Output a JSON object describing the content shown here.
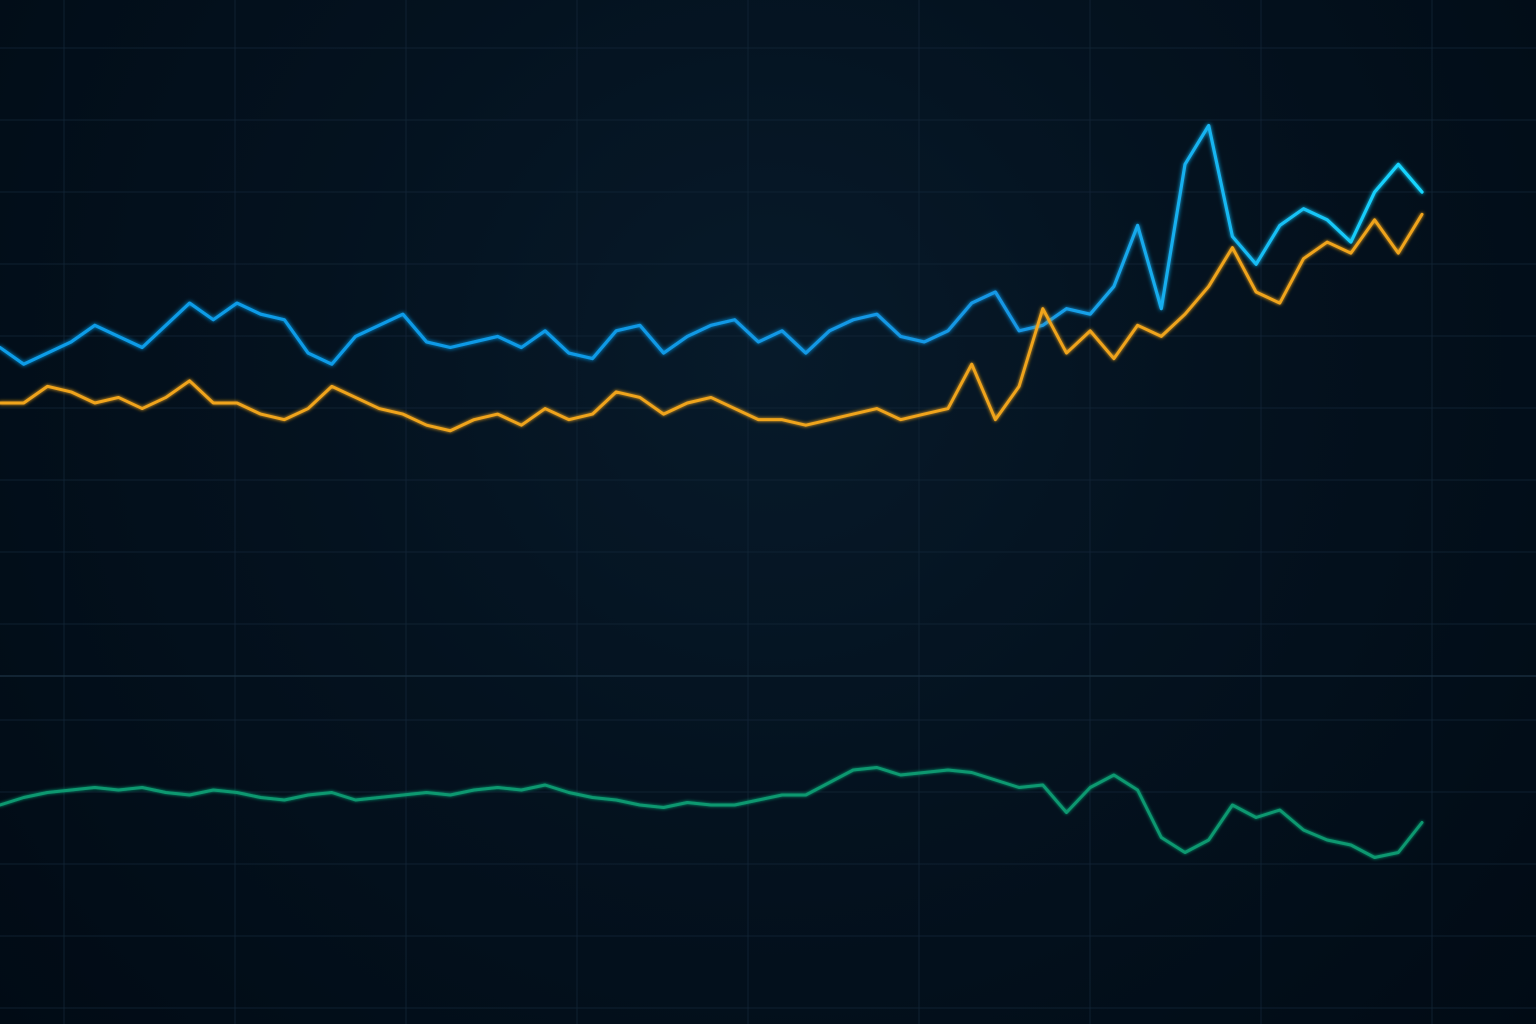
{
  "chart_data": [
    {
      "type": "line",
      "title": "",
      "xlabel": "",
      "ylabel": "",
      "grid": true,
      "legend": "none",
      "x": [
        0,
        1,
        2,
        3,
        4,
        5,
        6,
        7,
        8,
        9,
        10,
        11,
        12,
        13,
        14,
        15,
        16,
        17,
        18,
        19,
        20,
        21,
        22,
        23,
        24,
        25,
        26,
        27,
        28,
        29,
        30,
        31,
        32,
        33,
        34,
        35,
        36,
        37,
        38,
        39,
        40,
        41,
        42,
        43,
        44,
        45,
        46,
        47,
        48,
        49,
        50,
        51,
        52,
        53,
        54,
        55,
        56,
        57,
        58,
        59,
        60
      ],
      "ylim": [
        0,
        100
      ],
      "series": [
        {
          "values": [
            50,
            47,
            49,
            51,
            54,
            52,
            50,
            54,
            58,
            55,
            58,
            56,
            55,
            49,
            47,
            52,
            54,
            56,
            51,
            50,
            51,
            52,
            50,
            53,
            49,
            48,
            53,
            54,
            49,
            52,
            54,
            55,
            51,
            53,
            49,
            53,
            55,
            56,
            52,
            51,
            53,
            58,
            60,
            53,
            54,
            57,
            56,
            61,
            72,
            57,
            83,
            90,
            70,
            65,
            72,
            75,
            73,
            69,
            78,
            83,
            78
          ],
          "color": "#109de9"
        },
        {
          "values": [
            40,
            40,
            43,
            42,
            40,
            41,
            39,
            41,
            44,
            40,
            40,
            38,
            37,
            39,
            43,
            41,
            39,
            38,
            36,
            35,
            37,
            38,
            36,
            39,
            37,
            38,
            42,
            41,
            38,
            40,
            41,
            39,
            37,
            37,
            36,
            37,
            38,
            39,
            37,
            38,
            39,
            47,
            37,
            43,
            57,
            49,
            53,
            48,
            54,
            52,
            56,
            61,
            68,
            60,
            58,
            66,
            69,
            67,
            73,
            67,
            74
          ],
          "color": "#f0a41b"
        }
      ],
      "colors": {
        "background": "#02101c",
        "grid": "#132638"
      }
    },
    {
      "type": "line",
      "title": "",
      "xlabel": "",
      "ylabel": "",
      "grid": true,
      "legend": "none",
      "x": [
        0,
        1,
        2,
        3,
        4,
        5,
        6,
        7,
        8,
        9,
        10,
        11,
        12,
        13,
        14,
        15,
        16,
        17,
        18,
        19,
        20,
        21,
        22,
        23,
        24,
        25,
        26,
        27,
        28,
        29,
        30,
        31,
        32,
        33,
        34,
        35,
        36,
        37,
        38,
        39,
        40,
        41,
        42,
        43,
        44,
        45,
        46,
        47,
        48,
        49,
        50,
        51,
        52,
        53,
        54,
        55,
        56,
        57,
        58,
        59,
        60
      ],
      "ylim": [
        0,
        100
      ],
      "series": [
        {
          "values": [
            58,
            61,
            63,
            64,
            65,
            64,
            65,
            63,
            62,
            64,
            63,
            61,
            60,
            62,
            63,
            60,
            61,
            62,
            63,
            62,
            64,
            65,
            64,
            66,
            63,
            61,
            60,
            58,
            57,
            59,
            58,
            58,
            60,
            62,
            62,
            67,
            72,
            73,
            70,
            71,
            72,
            71,
            68,
            65,
            66,
            55,
            65,
            70,
            64,
            45,
            39,
            44,
            58,
            53,
            56,
            48,
            44,
            42,
            37,
            39,
            51
          ],
          "color": "#11986f"
        }
      ],
      "colors": {
        "background": "#02101c",
        "grid": "#132638"
      }
    }
  ]
}
